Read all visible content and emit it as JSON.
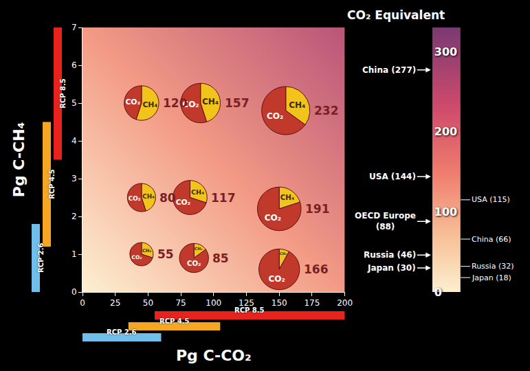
{
  "chart_data": {
    "type": "scatter_pie",
    "x_label": "Pg C-CO₂",
    "y_label": "Pg C-CH₄",
    "xlim": [
      0,
      200
    ],
    "xticks": [
      0,
      25,
      50,
      75,
      100,
      125,
      150,
      175,
      200
    ],
    "ylim": [
      0,
      7
    ],
    "yticks": [
      0,
      1,
      2,
      3,
      4,
      5,
      6,
      7
    ],
    "grid": false,
    "data_labels": true,
    "slice_labels": [
      "CH₄",
      "CO₂"
    ],
    "colors": [
      "#f2c31b",
      "#c0392b"
    ],
    "points": [
      {
        "x": 45,
        "y": 1.0,
        "total": 55,
        "ch4_share": 30,
        "co2_share": 70
      },
      {
        "x": 85,
        "y": 0.9,
        "total": 85,
        "ch4_share": 15,
        "co2_share": 85
      },
      {
        "x": 150,
        "y": 0.6,
        "total": 166,
        "ch4_share": 8,
        "co2_share": 92
      },
      {
        "x": 45,
        "y": 2.5,
        "total": 80,
        "ch4_share": 45,
        "co2_share": 55
      },
      {
        "x": 82,
        "y": 2.5,
        "total": 117,
        "ch4_share": 30,
        "co2_share": 70
      },
      {
        "x": 150,
        "y": 2.2,
        "total": 191,
        "ch4_share": 20,
        "co2_share": 80
      },
      {
        "x": 45,
        "y": 5.0,
        "total": 120,
        "ch4_share": 55,
        "co2_share": 45
      },
      {
        "x": 90,
        "y": 5.0,
        "total": 157,
        "ch4_share": 45,
        "co2_share": 55
      },
      {
        "x": 155,
        "y": 4.8,
        "total": 232,
        "ch4_share": 35,
        "co2_share": 65
      }
    ],
    "rcp_ranges": [
      {
        "name": "RCP 2.6",
        "color": "#6fbfea",
        "co2": [
          0,
          60
        ],
        "ch4": [
          0,
          1.8
        ]
      },
      {
        "name": "RCP 4.5",
        "color": "#f5a623",
        "co2": [
          35,
          105
        ],
        "ch4": [
          1.2,
          4.5
        ]
      },
      {
        "name": "RCP 8.5",
        "color": "#e8231e",
        "co2": [
          55,
          200
        ],
        "ch4": [
          3.5,
          7
        ]
      }
    ],
    "colorbar": {
      "title": "CO₂ Equivalent",
      "range": [
        0,
        330
      ],
      "ticks": [
        0,
        100,
        200,
        300
      ]
    },
    "reference_arrows": [
      {
        "label": "China (277)",
        "value": 277
      },
      {
        "label": "USA (144)",
        "value": 144
      },
      {
        "label": "OECD Europe (88)",
        "value": 88
      },
      {
        "label": "Russia (46)",
        "value": 46
      },
      {
        "label": "Japan (30)",
        "value": 30
      }
    ],
    "reference_lines": [
      {
        "label": "USA (115)",
        "value": 115
      },
      {
        "label": "China (66)",
        "value": 66
      },
      {
        "label": "Russia (32)",
        "value": 32
      },
      {
        "label": "Japan (18)",
        "value": 18
      }
    ]
  }
}
